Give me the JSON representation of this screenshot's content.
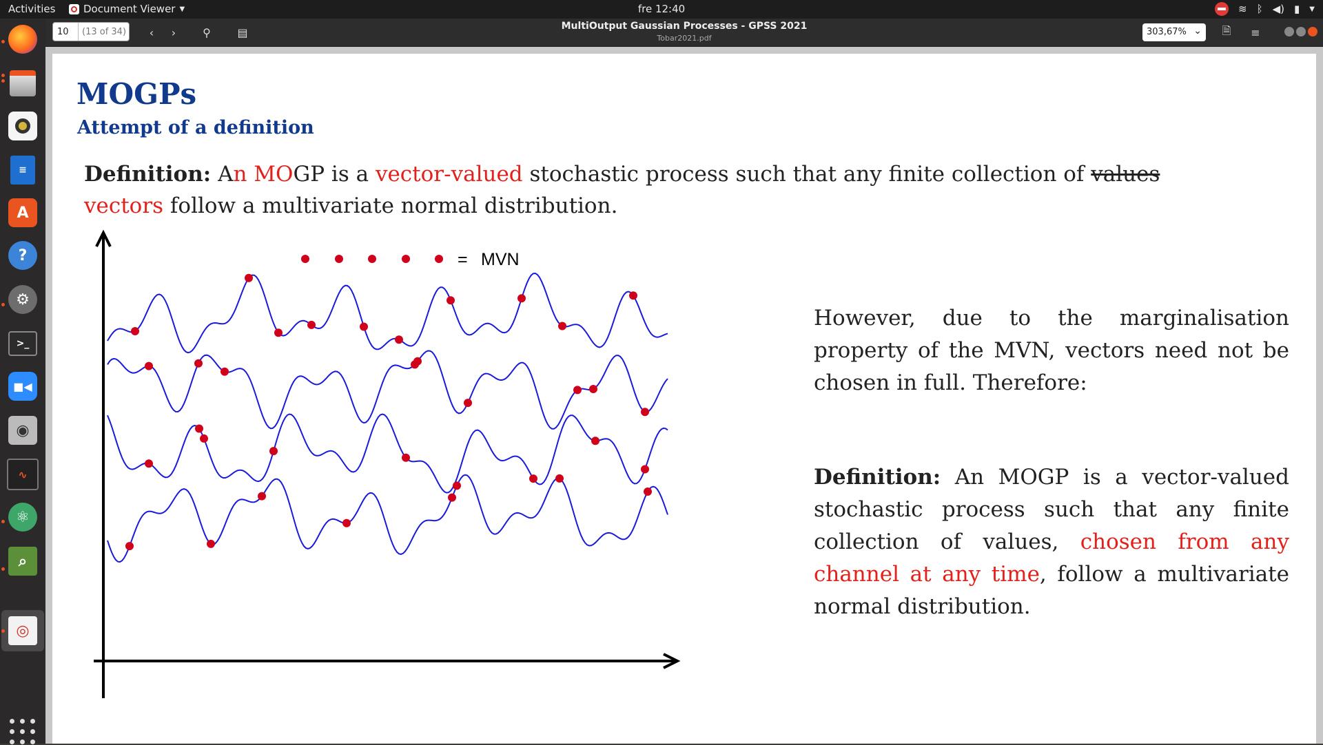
{
  "topbar": {
    "activities": "Activities",
    "app_name": "Document Viewer",
    "clock": "fre 12:40"
  },
  "toolbar": {
    "page_number": "10",
    "page_of": "(13 of 34)",
    "title": "MultiOutput Gaussian Processes - GPSS 2021",
    "subtitle": "Tobar2021.pdf",
    "zoom": "303,67%"
  },
  "slide": {
    "title": "MOGPs",
    "subtitle": "Attempt of a definition",
    "def1": {
      "label": "Definition:",
      "t1": " A",
      "t2": "n MO",
      "t3": "GP is a ",
      "t4": "vector-valued",
      "t5": " stochastic process such that any finite collection of ",
      "t6": "values",
      "t7": "vectors",
      "t8": " follow a multivariate normal distribution."
    },
    "legend_label": "MVN",
    "legend_equals": "=",
    "para1": "However, due to the marginalisation property of the MVN, vectors need not be chosen in full. Therefore:",
    "def2": {
      "label": "Definition:",
      "t1": " An MOGP is a vector-valued stochastic process such that any finite collection of values, ",
      "t2": "chosen from any channel at any time",
      "t3": ", follow a multivariate normal distribution."
    }
  },
  "colors": {
    "title": "#123a8c",
    "highlight": "#e3201b",
    "curve": "#1a1adc",
    "dot": "#d0021b"
  }
}
